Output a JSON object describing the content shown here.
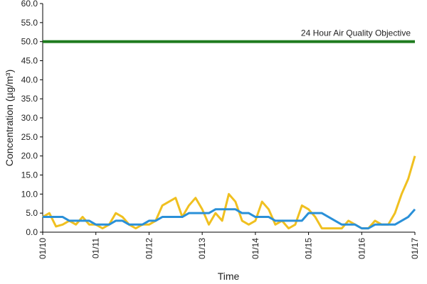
{
  "chart_data": {
    "type": "line",
    "y_label": "Concentration (µg/m³)",
    "x_label": "Time",
    "xlim": [
      0,
      168
    ],
    "xticks": [
      {
        "value": 0,
        "label": "01/10"
      },
      {
        "value": 24,
        "label": "01/11"
      },
      {
        "value": 48,
        "label": "01/12"
      },
      {
        "value": 72,
        "label": "01/13"
      },
      {
        "value": 96,
        "label": "01/14"
      },
      {
        "value": 120,
        "label": "01/15"
      },
      {
        "value": 144,
        "label": "01/16"
      },
      {
        "value": 168,
        "label": "01/17"
      }
    ],
    "ylim": [
      0,
      60
    ],
    "yticks": [
      {
        "value": 0,
        "label": "0.0"
      },
      {
        "value": 5,
        "label": "5.0"
      },
      {
        "value": 10,
        "label": "10.0"
      },
      {
        "value": 15,
        "label": "15.0"
      },
      {
        "value": 20,
        "label": "20.0"
      },
      {
        "value": 25,
        "label": "25.0"
      },
      {
        "value": 30,
        "label": "30.0"
      },
      {
        "value": 35,
        "label": "35.0"
      },
      {
        "value": 40,
        "label": "40.0"
      },
      {
        "value": 45,
        "label": "45.0"
      },
      {
        "value": 50,
        "label": "50.0"
      },
      {
        "value": 55,
        "label": "55.0"
      },
      {
        "value": 60,
        "label": "60.0"
      }
    ],
    "grid": false,
    "objective": {
      "label": "24 Hour Air Quality Objective",
      "value": 50,
      "color": "#1e7b1e"
    },
    "x": [
      0,
      3,
      6,
      9,
      12,
      15,
      18,
      21,
      24,
      27,
      30,
      33,
      36,
      39,
      42,
      45,
      48,
      51,
      54,
      57,
      60,
      63,
      66,
      69,
      72,
      75,
      78,
      81,
      84,
      87,
      90,
      93,
      96,
      99,
      102,
      105,
      108,
      111,
      114,
      117,
      120,
      123,
      126,
      129,
      132,
      135,
      138,
      141,
      144,
      147,
      150,
      153,
      156,
      159,
      162,
      165,
      168
    ],
    "series": [
      {
        "color": "#f0c020",
        "values": [
          4,
          5,
          1.5,
          2,
          3,
          2,
          4,
          2,
          2,
          1,
          2,
          5,
          4,
          2,
          1,
          2,
          2,
          3,
          7,
          8,
          9,
          4,
          7,
          9,
          6,
          2,
          5,
          3,
          10,
          8,
          3,
          2,
          3,
          8,
          6,
          2,
          3,
          1,
          2,
          7,
          6,
          4,
          1,
          1,
          1,
          1,
          3,
          2,
          1,
          1,
          3,
          2,
          2,
          5,
          10,
          14,
          20
        ]
      },
      {
        "color": "#2a90d8",
        "values": [
          4,
          4,
          4,
          4,
          3,
          3,
          3,
          3,
          2,
          2,
          2,
          3,
          3,
          2,
          2,
          2,
          3,
          3,
          4,
          4,
          4,
          4,
          5,
          5,
          5,
          5,
          6,
          6,
          6,
          6,
          5,
          5,
          4,
          4,
          4,
          3,
          3,
          3,
          3,
          3,
          5,
          5,
          5,
          4,
          3,
          2,
          2,
          2,
          1,
          1,
          2,
          2,
          2,
          2,
          3,
          4,
          6
        ]
      }
    ]
  }
}
